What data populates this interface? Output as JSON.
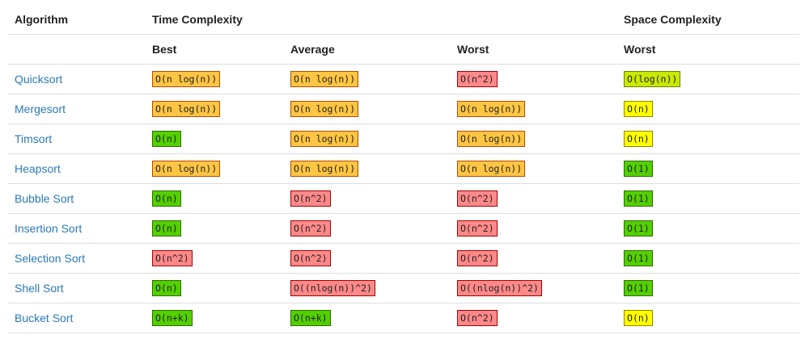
{
  "header": {
    "algorithm": "Algorithm",
    "time_complexity": "Time Complexity",
    "space_complexity": "Space Complexity",
    "best": "Best",
    "average": "Average",
    "worst": "Worst",
    "space_worst": "Worst"
  },
  "colors": {
    "green": "#53d000",
    "yellowgreen": "#c8ea00",
    "yellow": "#ffff00",
    "orange": "#ffc543",
    "red": "#ff8989",
    "link": "#2a7ab8"
  },
  "rows": [
    {
      "name": "Quicksort",
      "best": {
        "text": "O(n log(n))",
        "color": "orange"
      },
      "average": {
        "text": "O(n log(n))",
        "color": "orange"
      },
      "worst": {
        "text": "O(n^2)",
        "color": "red"
      },
      "space": {
        "text": "O(log(n))",
        "color": "yellowgreen"
      }
    },
    {
      "name": "Mergesort",
      "best": {
        "text": "O(n log(n))",
        "color": "orange"
      },
      "average": {
        "text": "O(n log(n))",
        "color": "orange"
      },
      "worst": {
        "text": "O(n log(n))",
        "color": "orange"
      },
      "space": {
        "text": "O(n)",
        "color": "yellow"
      }
    },
    {
      "name": "Timsort",
      "best": {
        "text": "O(n)",
        "color": "green"
      },
      "average": {
        "text": "O(n log(n))",
        "color": "orange"
      },
      "worst": {
        "text": "O(n log(n))",
        "color": "orange"
      },
      "space": {
        "text": "O(n)",
        "color": "yellow"
      }
    },
    {
      "name": "Heapsort",
      "best": {
        "text": "O(n log(n))",
        "color": "orange"
      },
      "average": {
        "text": "O(n log(n))",
        "color": "orange"
      },
      "worst": {
        "text": "O(n log(n))",
        "color": "orange"
      },
      "space": {
        "text": "O(1)",
        "color": "green"
      }
    },
    {
      "name": "Bubble Sort",
      "best": {
        "text": "O(n)",
        "color": "green"
      },
      "average": {
        "text": "O(n^2)",
        "color": "red"
      },
      "worst": {
        "text": "O(n^2)",
        "color": "red"
      },
      "space": {
        "text": "O(1)",
        "color": "green"
      }
    },
    {
      "name": "Insertion Sort",
      "best": {
        "text": "O(n)",
        "color": "green"
      },
      "average": {
        "text": "O(n^2)",
        "color": "red"
      },
      "worst": {
        "text": "O(n^2)",
        "color": "red"
      },
      "space": {
        "text": "O(1)",
        "color": "green"
      }
    },
    {
      "name": "Selection Sort",
      "best": {
        "text": "O(n^2)",
        "color": "red"
      },
      "average": {
        "text": "O(n^2)",
        "color": "red"
      },
      "worst": {
        "text": "O(n^2)",
        "color": "red"
      },
      "space": {
        "text": "O(1)",
        "color": "green"
      }
    },
    {
      "name": "Shell Sort",
      "best": {
        "text": "O(n)",
        "color": "green"
      },
      "average": {
        "text": "O((nlog(n))^2)",
        "color": "red"
      },
      "worst": {
        "text": "O((nlog(n))^2)",
        "color": "red"
      },
      "space": {
        "text": "O(1)",
        "color": "green"
      }
    },
    {
      "name": "Bucket Sort",
      "best": {
        "text": "O(n+k)",
        "color": "green"
      },
      "average": {
        "text": "O(n+k)",
        "color": "green"
      },
      "worst": {
        "text": "O(n^2)",
        "color": "red"
      },
      "space": {
        "text": "O(n)",
        "color": "yellow"
      }
    }
  ]
}
